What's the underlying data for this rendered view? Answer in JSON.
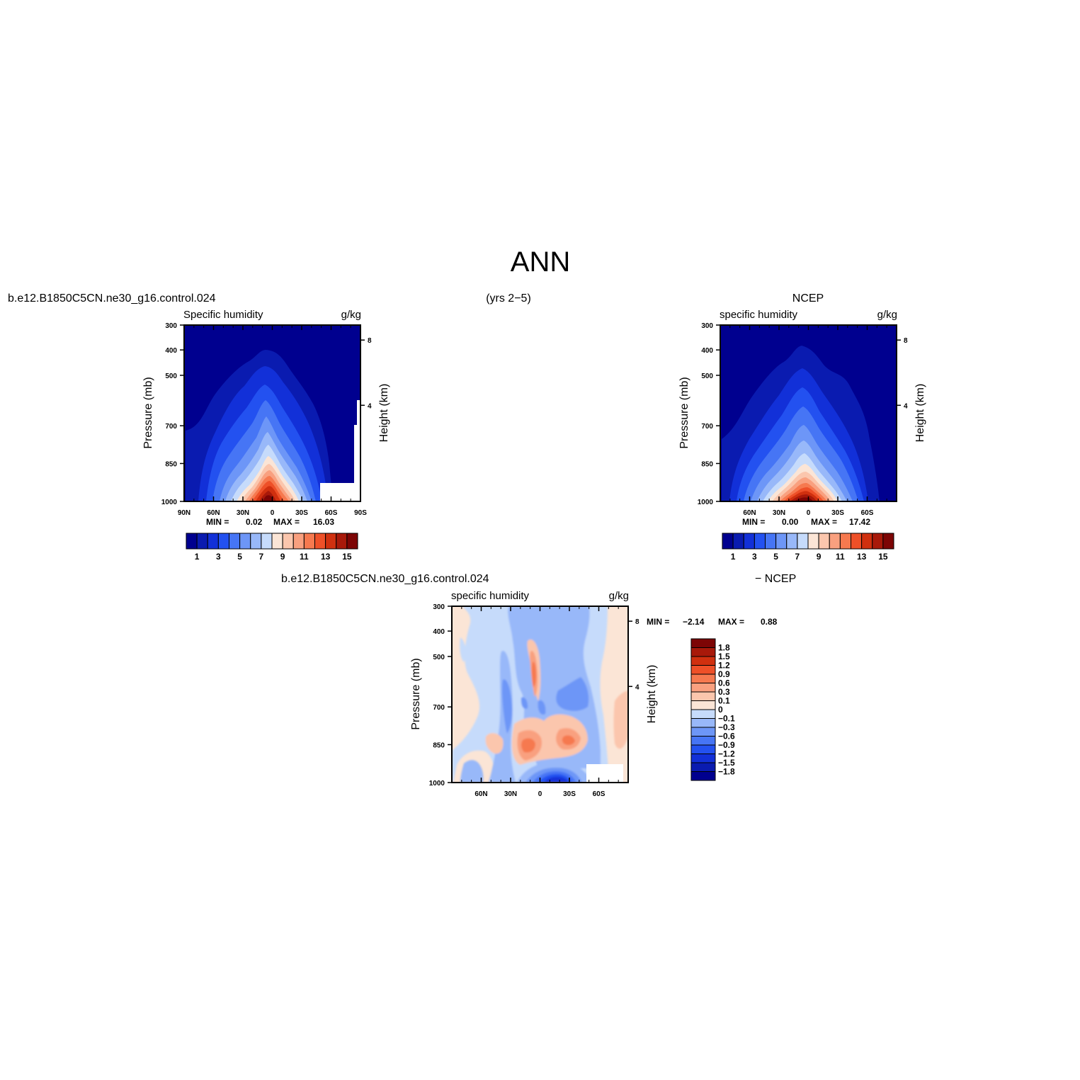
{
  "page": {
    "main_title": "ANN",
    "case_name": "b.e12.B1850C5CN.ne30_g16.control.024",
    "years": "(yrs 2−5)",
    "obs_name": "NCEP",
    "diff_case_name": "b.e12.B1850C5CN.ne30_g16.control.024",
    "diff_obs_name": "− NCEP"
  },
  "chart_data": [
    {
      "id": "model",
      "type": "heatmap",
      "left_title": "Specific humidity",
      "right_title": "g/kg",
      "ylabel": "Pressure (mb)",
      "y2label": "Height (km)",
      "xlim": [
        90,
        -90
      ],
      "ylim": [
        1000,
        300
      ],
      "xtick_labels": [
        "90N",
        "60N",
        "30N",
        "0",
        "30S",
        "60S",
        "90S"
      ],
      "ytick_labels": [
        "300",
        "400",
        "500",
        "700",
        "850",
        "1000"
      ],
      "y2tick_labels": [
        "8",
        "4"
      ],
      "min_label": "MIN =",
      "min_value": "0.02",
      "max_label": "MAX =",
      "max_value": "16.03",
      "colorbar_labels": [
        "1",
        "3",
        "5",
        "7",
        "9",
        "11",
        "13",
        "15"
      ],
      "levels": [
        1,
        2,
        3,
        4,
        5,
        6,
        7,
        8,
        9,
        10,
        11,
        12,
        13,
        14,
        15
      ],
      "colors": [
        "#00008f",
        "#0a1bb0",
        "#1230d8",
        "#2351f0",
        "#4675f5",
        "#6d96f7",
        "#98b8f9",
        "#c6dbfb",
        "#fbe5d6",
        "#fbc6ad",
        "#f9a07f",
        "#f6794f",
        "#ee5028",
        "#d0300f",
        "#a8190a",
        "#7d0505"
      ],
      "approx_peak": {
        "lat": 3,
        "p": 1000,
        "value": 16.03
      },
      "missing_region": {
        "lat_from": -55,
        "lat_to": -90,
        "p_from": 1000,
        "p_to": 930
      }
    },
    {
      "id": "obs",
      "type": "heatmap",
      "left_title": "specific humidity",
      "right_title": "g/kg",
      "ylabel": "Pressure (mb)",
      "y2label": "Height (km)",
      "xlim": [
        90,
        -90
      ],
      "ylim": [
        1000,
        300
      ],
      "xtick_labels": [
        "60N",
        "30N",
        "0",
        "30S",
        "60S"
      ],
      "ytick_labels": [
        "300",
        "400",
        "500",
        "700",
        "850",
        "1000"
      ],
      "y2tick_labels": [
        "8",
        "4"
      ],
      "min_label": "MIN =",
      "min_value": "0.00",
      "max_label": "MAX =",
      "max_value": "17.42",
      "colorbar_labels": [
        "1",
        "3",
        "5",
        "7",
        "9",
        "11",
        "13",
        "15"
      ],
      "levels": [
        1,
        2,
        3,
        4,
        5,
        6,
        7,
        8,
        9,
        10,
        11,
        12,
        13,
        14,
        15
      ],
      "colors": [
        "#00008f",
        "#0a1bb0",
        "#1230d8",
        "#2351f0",
        "#4675f5",
        "#6d96f7",
        "#98b8f9",
        "#c6dbfb",
        "#fbe5d6",
        "#fbc6ad",
        "#f9a07f",
        "#f6794f",
        "#ee5028",
        "#d0300f",
        "#a8190a",
        "#7d0505"
      ],
      "approx_peak": {
        "lat": 0,
        "p": 1000,
        "value": 17.42
      }
    },
    {
      "id": "diff",
      "type": "heatmap",
      "left_title": "specific humidity",
      "right_title": "g/kg",
      "ylabel": "Pressure (mb)",
      "y2label": "Height (km)",
      "xlim": [
        90,
        -90
      ],
      "ylim": [
        1000,
        300
      ],
      "xtick_labels": [
        "60N",
        "30N",
        "0",
        "30S",
        "60S"
      ],
      "ytick_labels": [
        "300",
        "400",
        "500",
        "700",
        "850",
        "1000"
      ],
      "y2tick_labels": [
        "8",
        "4"
      ],
      "min_label": "MIN =",
      "min_value": "−2.14",
      "max_label": "MAX =",
      "max_value": "0.88",
      "colorbar_labels": [
        "1.8",
        "1.5",
        "1.2",
        "0.9",
        "0.6",
        "0.3",
        "0.1",
        "0",
        "−0.1",
        "−0.3",
        "−0.6",
        "−0.9",
        "−1.2",
        "−1.5",
        "−1.8"
      ],
      "levels": [
        -1.8,
        -1.5,
        -1.2,
        -0.9,
        -0.6,
        -0.3,
        -0.1,
        0,
        0.1,
        0.3,
        0.6,
        0.9,
        1.2,
        1.5,
        1.8
      ],
      "colors": [
        "#00008f",
        "#0a1bb0",
        "#1230d8",
        "#2351f0",
        "#4675f5",
        "#6d96f7",
        "#98b8f9",
        "#c6dbfb",
        "#fbe5d6",
        "#fbc6ad",
        "#f9a07f",
        "#f6794f",
        "#ee5028",
        "#d0300f",
        "#a8190a",
        "#7d0505"
      ],
      "missing_region": {
        "lat_from": -45,
        "lat_to": -85,
        "p_from": 1000,
        "p_to": 945
      }
    }
  ]
}
